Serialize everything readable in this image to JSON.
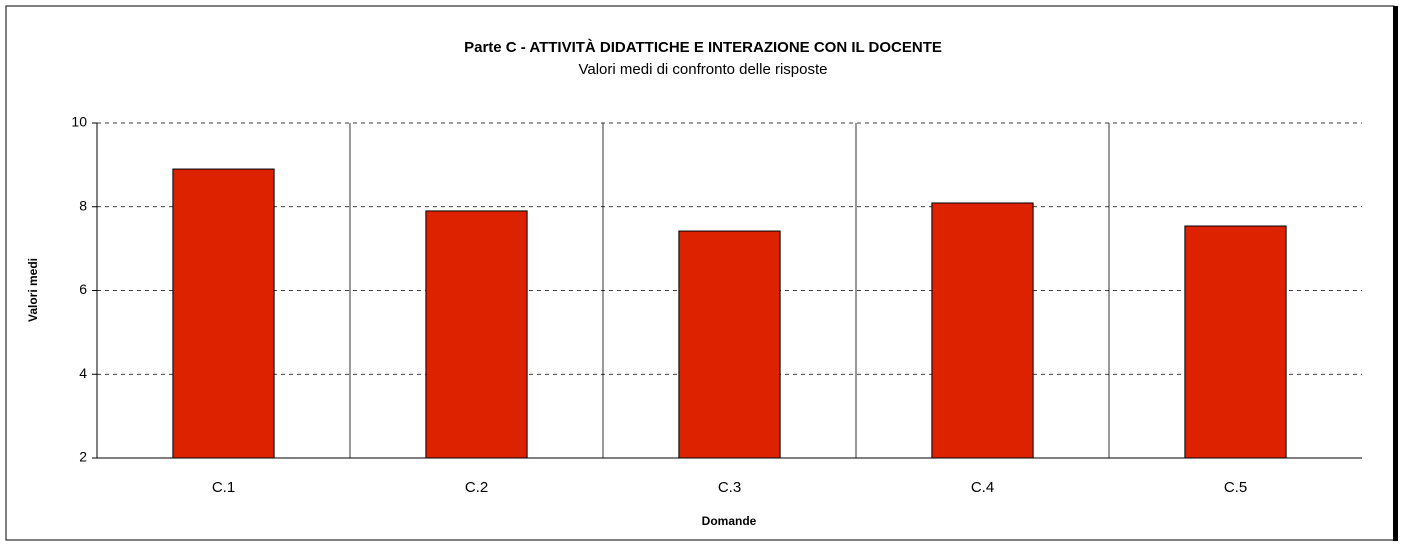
{
  "chart_data": {
    "type": "bar",
    "title": "Parte C - ATTIVITÀ DIDATTICHE E INTERAZIONE CON IL DOCENTE",
    "subtitle": "Valori medi di confronto delle risposte",
    "x_label": "Domande",
    "y_label": "Valori medi",
    "categories": [
      "C.1",
      "C.2",
      "C.3",
      "C.4",
      "C.5"
    ],
    "values": [
      8.9,
      7.9,
      7.42,
      8.09,
      7.54
    ],
    "color": "#dd2200",
    "ylim": [
      2,
      10
    ],
    "yticks": [
      2,
      4,
      6,
      8,
      10
    ],
    "grid": true
  }
}
